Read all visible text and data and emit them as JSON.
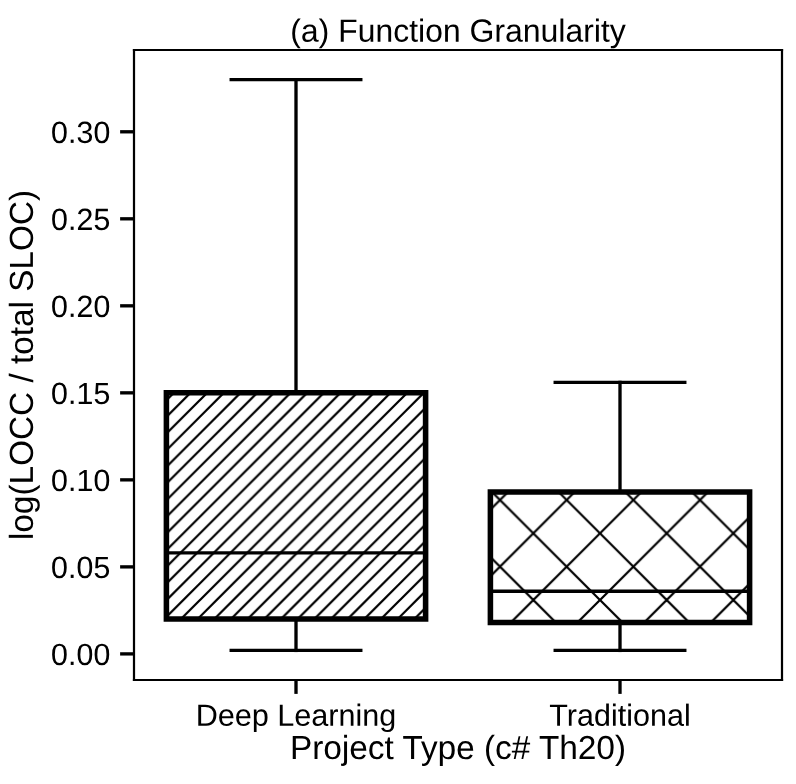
{
  "chart_data": {
    "type": "box",
    "title": "(a) Function Granularity",
    "xlabel": "Project Type (c# Th20)",
    "ylabel": "log(LOCC / total SLOC)",
    "categories": [
      "Deep Learning",
      "Traditional"
    ],
    "series": [
      {
        "color": "#000000",
        "boxes": [
          {
            "low": 0.002,
            "q1": 0.02,
            "median": 0.058,
            "q3": 0.15,
            "high": 0.33
          },
          {
            "low": 0.002,
            "q1": 0.018,
            "median": 0.036,
            "q3": 0.093,
            "high": 0.156
          }
        ]
      }
    ],
    "ylim": [
      -0.015,
      0.347
    ],
    "yticks": [
      {
        "value": 0,
        "label": "0.00"
      },
      {
        "value": 0.05,
        "label": "0.05"
      },
      {
        "value": 0.1,
        "label": "0.10"
      },
      {
        "value": 0.15,
        "label": "0.15"
      },
      {
        "value": 0.2,
        "label": "0.20"
      },
      {
        "value": 0.25,
        "label": "0.25"
      },
      {
        "value": 0.3,
        "label": "0.30"
      }
    ],
    "grid": false,
    "legend": false
  }
}
